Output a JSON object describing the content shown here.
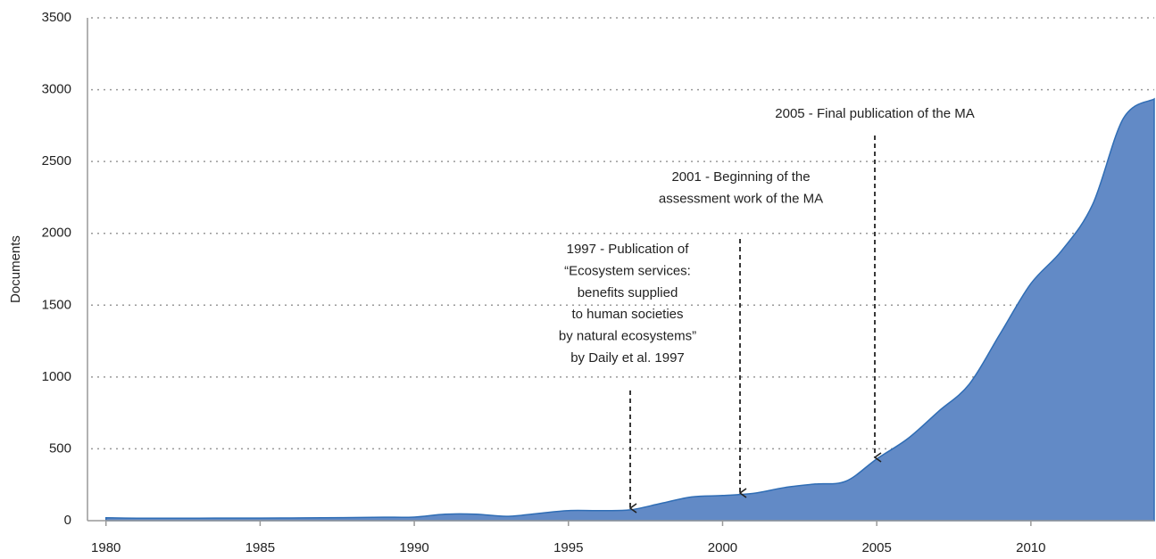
{
  "chart_data": {
    "type": "area",
    "y_label": "Documents",
    "x": [
      1980,
      1981,
      1982,
      1983,
      1984,
      1985,
      1986,
      1987,
      1988,
      1989,
      1990,
      1991,
      1992,
      1993,
      1994,
      1995,
      1996,
      1997,
      1998,
      1999,
      2000,
      2001,
      2002,
      2003,
      2004,
      2005,
      2006,
      2007,
      2008,
      2009,
      2010,
      2011,
      2012,
      2013,
      2014
    ],
    "series": [
      {
        "color": "#628ac6",
        "values": [
          20,
          17,
          17,
          17,
          18,
          18,
          19,
          20,
          22,
          24,
          25,
          45,
          45,
          30,
          50,
          70,
          70,
          75,
          120,
          165,
          175,
          190,
          230,
          255,
          275,
          430,
          570,
          760,
          950,
          1300,
          1650,
          1880,
          2200,
          2800,
          2935
        ]
      }
    ],
    "xlim": [
      1979.4,
      2014
    ],
    "ylim": [
      0,
      3500
    ],
    "xticks": [
      1980,
      1985,
      1990,
      1995,
      2000,
      2005,
      2010
    ],
    "yticks": [
      0,
      500,
      1000,
      1500,
      2000,
      2500,
      3000,
      3500
    ],
    "grid": true,
    "annotations": [
      {
        "lines": [
          "1997 - Publication of",
          "“Ecosystem services:",
          "benefits supplied",
          "to human societies",
          "by natural ecosystems”",
          "by Daily et al. 1997"
        ]
      },
      {
        "lines": [
          "2001 - Beginning of the",
          "assessment work of the MA"
        ]
      },
      {
        "lines": [
          "2005 - Final publication of the MA"
        ]
      }
    ]
  }
}
